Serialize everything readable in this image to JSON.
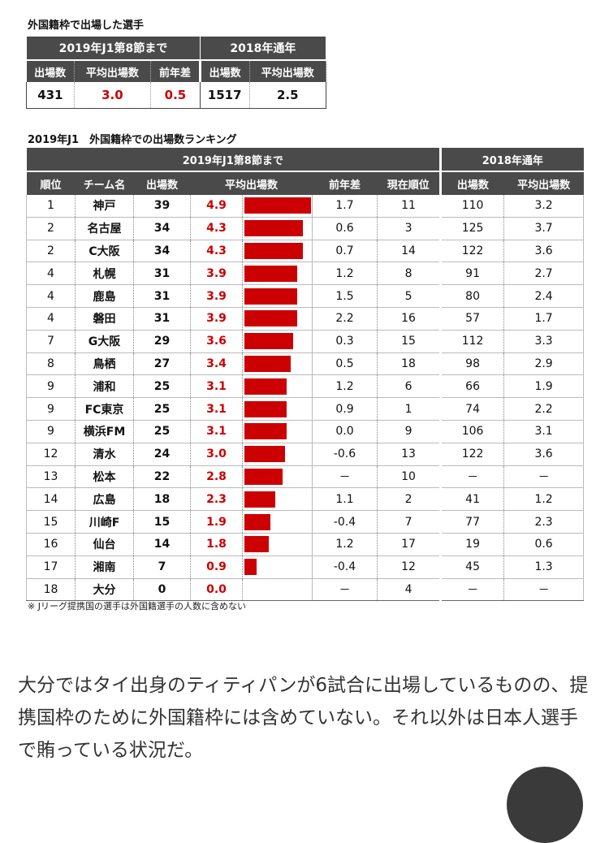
{
  "summary": {
    "title": "外国籍枠で出場した選手",
    "group_2019": "2019年J1第8節まで",
    "group_2018": "2018年通年",
    "headers": [
      "出場数",
      "平均出場数",
      "前年差",
      "出場数",
      "平均出場数"
    ],
    "values": [
      "431",
      "3.0",
      "0.5",
      "1517",
      "2.5"
    ]
  },
  "ranking": {
    "title": "2019年J1　外国籍枠での出場数ランキング",
    "group_2019": "2019年J1第8節まで",
    "group_2018": "2018年通年",
    "headers": [
      "順位",
      "チーム名",
      "出場数",
      "平均出場数",
      "前年差",
      "現在順位",
      "出場数",
      "平均出場数"
    ],
    "bar_max": 4.9,
    "rows": [
      {
        "rank": "1",
        "team": "神戸",
        "apps": "39",
        "avg": "4.9",
        "avg_value": 4.9,
        "diff": "1.7",
        "pos": "11",
        "apps18": "110",
        "avg18": "3.2"
      },
      {
        "rank": "2",
        "team": "名古屋",
        "apps": "34",
        "avg": "4.3",
        "avg_value": 4.3,
        "diff": "0.6",
        "pos": "3",
        "apps18": "125",
        "avg18": "3.7"
      },
      {
        "rank": "2",
        "team": "C大阪",
        "apps": "34",
        "avg": "4.3",
        "avg_value": 4.3,
        "diff": "0.7",
        "pos": "14",
        "apps18": "122",
        "avg18": "3.6"
      },
      {
        "rank": "4",
        "team": "札幌",
        "apps": "31",
        "avg": "3.9",
        "avg_value": 3.9,
        "diff": "1.2",
        "pos": "8",
        "apps18": "91",
        "avg18": "2.7"
      },
      {
        "rank": "4",
        "team": "鹿島",
        "apps": "31",
        "avg": "3.9",
        "avg_value": 3.9,
        "diff": "1.5",
        "pos": "5",
        "apps18": "80",
        "avg18": "2.4"
      },
      {
        "rank": "4",
        "team": "磐田",
        "apps": "31",
        "avg": "3.9",
        "avg_value": 3.9,
        "diff": "2.2",
        "pos": "16",
        "apps18": "57",
        "avg18": "1.7"
      },
      {
        "rank": "7",
        "team": "G大阪",
        "apps": "29",
        "avg": "3.6",
        "avg_value": 3.6,
        "diff": "0.3",
        "pos": "15",
        "apps18": "112",
        "avg18": "3.3"
      },
      {
        "rank": "8",
        "team": "鳥栖",
        "apps": "27",
        "avg": "3.4",
        "avg_value": 3.4,
        "diff": "0.5",
        "pos": "18",
        "apps18": "98",
        "avg18": "2.9"
      },
      {
        "rank": "9",
        "team": "浦和",
        "apps": "25",
        "avg": "3.1",
        "avg_value": 3.1,
        "diff": "1.2",
        "pos": "6",
        "apps18": "66",
        "avg18": "1.9"
      },
      {
        "rank": "9",
        "team": "FC東京",
        "apps": "25",
        "avg": "3.1",
        "avg_value": 3.1,
        "diff": "0.9",
        "pos": "1",
        "apps18": "74",
        "avg18": "2.2"
      },
      {
        "rank": "9",
        "team": "横浜FM",
        "apps": "25",
        "avg": "3.1",
        "avg_value": 3.1,
        "diff": "0.0",
        "pos": "9",
        "apps18": "106",
        "avg18": "3.1"
      },
      {
        "rank": "12",
        "team": "清水",
        "apps": "24",
        "avg": "3.0",
        "avg_value": 3.0,
        "diff": "-0.6",
        "pos": "13",
        "apps18": "122",
        "avg18": "3.6"
      },
      {
        "rank": "13",
        "team": "松本",
        "apps": "22",
        "avg": "2.8",
        "avg_value": 2.8,
        "diff": "－",
        "pos": "10",
        "apps18": "－",
        "avg18": "－"
      },
      {
        "rank": "14",
        "team": "広島",
        "apps": "18",
        "avg": "2.3",
        "avg_value": 2.3,
        "diff": "1.1",
        "pos": "2",
        "apps18": "41",
        "avg18": "1.2"
      },
      {
        "rank": "15",
        "team": "川崎F",
        "apps": "15",
        "avg": "1.9",
        "avg_value": 1.9,
        "diff": "-0.4",
        "pos": "7",
        "apps18": "77",
        "avg18": "2.3"
      },
      {
        "rank": "16",
        "team": "仙台",
        "apps": "14",
        "avg": "1.8",
        "avg_value": 1.8,
        "diff": "1.2",
        "pos": "17",
        "apps18": "19",
        "avg18": "0.6"
      },
      {
        "rank": "17",
        "team": "湘南",
        "apps": "7",
        "avg": "0.9",
        "avg_value": 0.9,
        "diff": "-0.4",
        "pos": "12",
        "apps18": "45",
        "avg18": "1.3"
      },
      {
        "rank": "18",
        "team": "大分",
        "apps": "0",
        "avg": "0.0",
        "avg_value": 0.0,
        "diff": "－",
        "pos": "4",
        "apps18": "－",
        "avg18": "－"
      }
    ]
  },
  "note": "※ Jリーグ提携国の選手は外国籍選手の人数に含めない",
  "body_text": "大分ではタイ出身のティティパンが6試合に出場しているものの、提携国枠のために外国籍枠には含めていない。それ以外は日本人選手で賄っている状況だ。",
  "colors": {
    "accent": "#cc0000",
    "header": "#4a4a4a"
  }
}
